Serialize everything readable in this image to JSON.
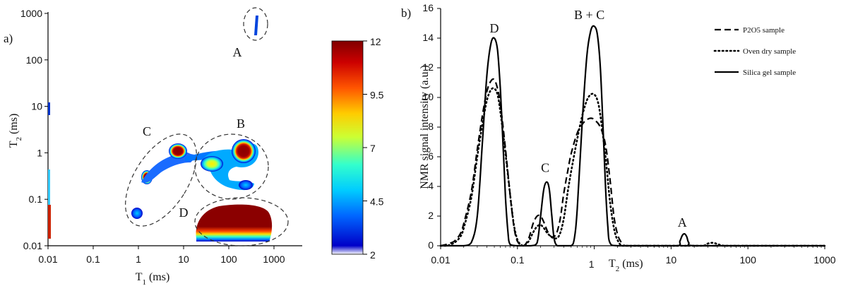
{
  "chart_data": [
    {
      "type": "heatmap",
      "panel_label": "a)",
      "xlabel_main": "T",
      "xlabel_sub": "1",
      "xlabel_unit": " (ms)",
      "ylabel_main": "T",
      "ylabel_sub": "2",
      "ylabel_unit": " (ms)",
      "x_scale": "log",
      "y_scale": "log",
      "xlim": [
        0.01,
        1000
      ],
      "ylim": [
        0.01,
        1000
      ],
      "x_ticks": [
        "0.01",
        "0.1",
        "1",
        "10",
        "100",
        "1000"
      ],
      "y_ticks": [
        "0.01",
        "0.1",
        "1",
        "10",
        "100",
        "1000"
      ],
      "colorbar": {
        "range": [
          2,
          12
        ],
        "ticks": [
          "12",
          "9.5",
          "7",
          "4.5",
          "2"
        ],
        "colors": [
          "#ffffff",
          "#0000c8",
          "#0066ff",
          "#00ccff",
          "#33ffcc",
          "#ccff33",
          "#ffcc00",
          "#ff5500",
          "#cc0000",
          "#800000"
        ]
      },
      "regions": [
        {
          "label": "A",
          "t1": 140,
          "t2": 600
        },
        {
          "label": "B",
          "t1": 70,
          "t2": 0.8
        },
        {
          "label": "C",
          "t1": 2,
          "t2": 0.6
        },
        {
          "label": "D",
          "t1": 60,
          "t2": 0.035
        }
      ]
    },
    {
      "type": "line",
      "panel_label": "b)",
      "xlabel_main": "T",
      "xlabel_sub": "2",
      "xlabel_unit": " (ms)",
      "ylabel": "NMR signal intensity (a.u.)",
      "x_scale": "log",
      "xlim": [
        0.01,
        1000
      ],
      "ylim": [
        0,
        16
      ],
      "x_ticks": [
        "0.01",
        "0.1",
        "1",
        "10",
        "100",
        "1000"
      ],
      "y_ticks": [
        "0",
        "2",
        "4",
        "6",
        "8",
        "10",
        "12",
        "14",
        "16"
      ],
      "legend_position": "top-right",
      "peak_labels": [
        {
          "text": "D",
          "x": 0.05,
          "y": 14
        },
        {
          "text": "C",
          "x": 0.23,
          "y": 4.3
        },
        {
          "text": "B + C",
          "x": 0.9,
          "y": 14.8
        },
        {
          "text": "A",
          "x": 14,
          "y": 0.8
        }
      ],
      "series": [
        {
          "name": "P2O5 sample",
          "style": "dashed",
          "x": [
            0.01,
            0.012,
            0.015,
            0.018,
            0.02,
            0.025,
            0.03,
            0.035,
            0.04,
            0.045,
            0.05,
            0.055,
            0.06,
            0.07,
            0.08,
            0.09,
            0.1,
            0.12,
            0.14,
            0.16,
            0.18,
            0.2,
            0.22,
            0.25,
            0.28,
            0.32,
            0.36,
            0.4,
            0.45,
            0.5,
            0.6,
            0.7,
            0.8,
            0.9,
            1.0,
            1.2,
            1.4,
            1.6,
            1.8,
            2.0,
            2.2,
            2.5,
            3,
            5,
            10,
            100,
            1000
          ],
          "y": [
            0,
            0.1,
            0.3,
            0.8,
            1.5,
            3.6,
            6.5,
            8.8,
            10.4,
            11.1,
            11.2,
            10.6,
            9.5,
            6.5,
            3.5,
            1.3,
            0.3,
            0,
            0.5,
            1.5,
            2.0,
            2.0,
            1.6,
            0.9,
            0.6,
            0.8,
            1.8,
            3.5,
            5.0,
            6.2,
            7.6,
            8.2,
            8.5,
            8.6,
            8.5,
            8.0,
            6.8,
            4.5,
            2.0,
            0.8,
            0.3,
            0,
            0,
            0,
            0,
            0,
            0
          ]
        },
        {
          "name": "Oven dry sample",
          "style": "dotted",
          "x": [
            0.01,
            0.012,
            0.015,
            0.018,
            0.02,
            0.025,
            0.03,
            0.035,
            0.04,
            0.045,
            0.05,
            0.055,
            0.06,
            0.07,
            0.08,
            0.09,
            0.1,
            0.11,
            0.12,
            0.14,
            0.16,
            0.18,
            0.2,
            0.22,
            0.25,
            0.3,
            0.35,
            0.4,
            0.45,
            0.5,
            0.6,
            0.7,
            0.8,
            0.9,
            1.0,
            1.1,
            1.2,
            1.4,
            1.6,
            1.8,
            2.0,
            2.3,
            3,
            10,
            25,
            30,
            35,
            40,
            50,
            100,
            1000
          ],
          "y": [
            0,
            0,
            0.2,
            0.6,
            1.2,
            3.2,
            6.0,
            8.2,
            9.8,
            10.5,
            10.6,
            10.2,
            9.0,
            6.2,
            3.5,
            1.4,
            0.4,
            0.1,
            0,
            0.3,
            0.9,
            1.3,
            1.4,
            1.2,
            0.8,
            0.5,
            0.7,
            1.8,
            3.6,
            5.0,
            7.2,
            8.8,
            9.8,
            10.2,
            10.2,
            9.8,
            8.8,
            6.0,
            3.0,
            1.2,
            0.4,
            0,
            0,
            0,
            0,
            0.15,
            0.2,
            0.12,
            0,
            0,
            0
          ]
        },
        {
          "name": "Silica gel sample",
          "style": "solid",
          "x": [
            0.01,
            0.015,
            0.02,
            0.025,
            0.03,
            0.035,
            0.04,
            0.045,
            0.05,
            0.055,
            0.06,
            0.065,
            0.07,
            0.075,
            0.08,
            0.1,
            0.15,
            0.18,
            0.2,
            0.22,
            0.24,
            0.26,
            0.28,
            0.3,
            0.33,
            0.4,
            0.5,
            0.55,
            0.6,
            0.7,
            0.8,
            0.9,
            1.0,
            1.1,
            1.2,
            1.3,
            1.4,
            1.5,
            1.6,
            2,
            5,
            12,
            13,
            14,
            15,
            16,
            17,
            20,
            100,
            1000
          ],
          "y": [
            0,
            0,
            0,
            0.2,
            2.0,
            7.0,
            11.5,
            13.6,
            14.0,
            13.2,
            10.5,
            6.8,
            3.2,
            1.0,
            0.1,
            0,
            0,
            0.2,
            2.0,
            3.8,
            4.3,
            3.8,
            2.0,
            0.5,
            0,
            0,
            0,
            0.5,
            2.5,
            8.5,
            12.8,
            14.5,
            14.8,
            14.2,
            12.0,
            8.0,
            4.0,
            1.3,
            0.2,
            0,
            0,
            0,
            0.3,
            0.7,
            0.8,
            0.6,
            0.2,
            0,
            0,
            0
          ]
        }
      ]
    }
  ]
}
